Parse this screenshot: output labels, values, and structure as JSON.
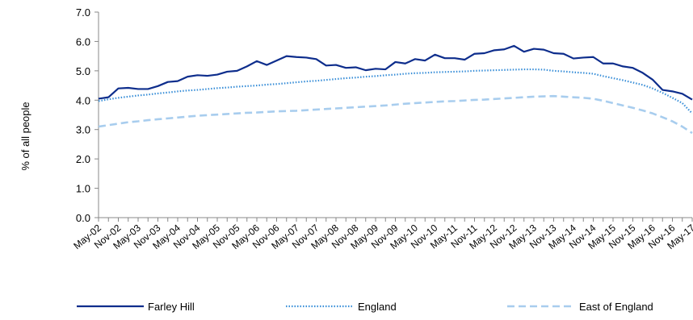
{
  "chart_data": {
    "type": "line",
    "ylabel": "% of all people",
    "ylim": [
      0,
      7
    ],
    "yticks": [
      "0.0",
      "1.0",
      "2.0",
      "3.0",
      "4.0",
      "5.0",
      "6.0",
      "7.0"
    ],
    "x_tick_labels": [
      "May-02",
      "Nov-02",
      "May-03",
      "Nov-03",
      "May-04",
      "Nov-04",
      "May-05",
      "Nov-05",
      "May-06",
      "Nov-06",
      "May-07",
      "Nov-07",
      "May-08",
      "Nov-08",
      "May-09",
      "Nov-09",
      "May-10",
      "Nov-10",
      "May-11",
      "Nov-11",
      "May-12",
      "Nov-12",
      "May-13",
      "Nov-13",
      "May-14",
      "Nov-14",
      "May-15",
      "Nov-15",
      "May-16",
      "Nov-16",
      "May-17"
    ],
    "x_note": "quarterly observations from May-02 to Aug-17",
    "grid": false,
    "legend_position": "bottom",
    "series": [
      {
        "name": "Farley Hill",
        "color": "#0d2d8c",
        "style": "solid",
        "values": [
          4.05,
          4.1,
          4.4,
          4.42,
          4.38,
          4.38,
          4.48,
          4.62,
          4.65,
          4.8,
          4.85,
          4.83,
          4.87,
          4.97,
          5.0,
          5.15,
          5.33,
          5.2,
          5.35,
          5.5,
          5.47,
          5.45,
          5.4,
          5.18,
          5.2,
          5.1,
          5.12,
          5.02,
          5.07,
          5.05,
          5.3,
          5.25,
          5.4,
          5.35,
          5.55,
          5.43,
          5.43,
          5.38,
          5.58,
          5.6,
          5.7,
          5.73,
          5.85,
          5.65,
          5.75,
          5.72,
          5.6,
          5.58,
          5.42,
          5.45,
          5.47,
          5.25,
          5.25,
          5.15,
          5.1,
          4.93,
          4.7,
          4.35,
          4.3,
          4.22,
          4.02
        ]
      },
      {
        "name": "England",
        "color": "#3a8fd8",
        "style": "dotted",
        "values": [
          3.97,
          4.03,
          4.08,
          4.12,
          4.16,
          4.19,
          4.23,
          4.26,
          4.3,
          4.33,
          4.35,
          4.38,
          4.41,
          4.43,
          4.46,
          4.48,
          4.5,
          4.53,
          4.55,
          4.58,
          4.61,
          4.64,
          4.66,
          4.69,
          4.72,
          4.75,
          4.77,
          4.8,
          4.82,
          4.85,
          4.87,
          4.9,
          4.92,
          4.93,
          4.95,
          4.96,
          4.97,
          4.98,
          5.0,
          5.01,
          5.02,
          5.03,
          5.04,
          5.05,
          5.05,
          5.04,
          5.0,
          4.98,
          4.95,
          4.93,
          4.9,
          4.82,
          4.75,
          4.68,
          4.6,
          4.52,
          4.4,
          4.25,
          4.08,
          3.9,
          3.55
        ]
      },
      {
        "name": "East of England",
        "color": "#a8cdee",
        "style": "dashed",
        "values": [
          3.1,
          3.15,
          3.2,
          3.25,
          3.28,
          3.32,
          3.35,
          3.38,
          3.41,
          3.44,
          3.47,
          3.49,
          3.51,
          3.53,
          3.55,
          3.57,
          3.58,
          3.6,
          3.62,
          3.63,
          3.64,
          3.66,
          3.68,
          3.7,
          3.72,
          3.74,
          3.76,
          3.78,
          3.8,
          3.82,
          3.85,
          3.88,
          3.9,
          3.92,
          3.94,
          3.96,
          3.97,
          3.99,
          4.01,
          4.02,
          4.04,
          4.06,
          4.08,
          4.1,
          4.12,
          4.13,
          4.14,
          4.12,
          4.1,
          4.08,
          4.05,
          3.98,
          3.9,
          3.82,
          3.74,
          3.65,
          3.55,
          3.42,
          3.28,
          3.1,
          2.88
        ]
      }
    ]
  }
}
